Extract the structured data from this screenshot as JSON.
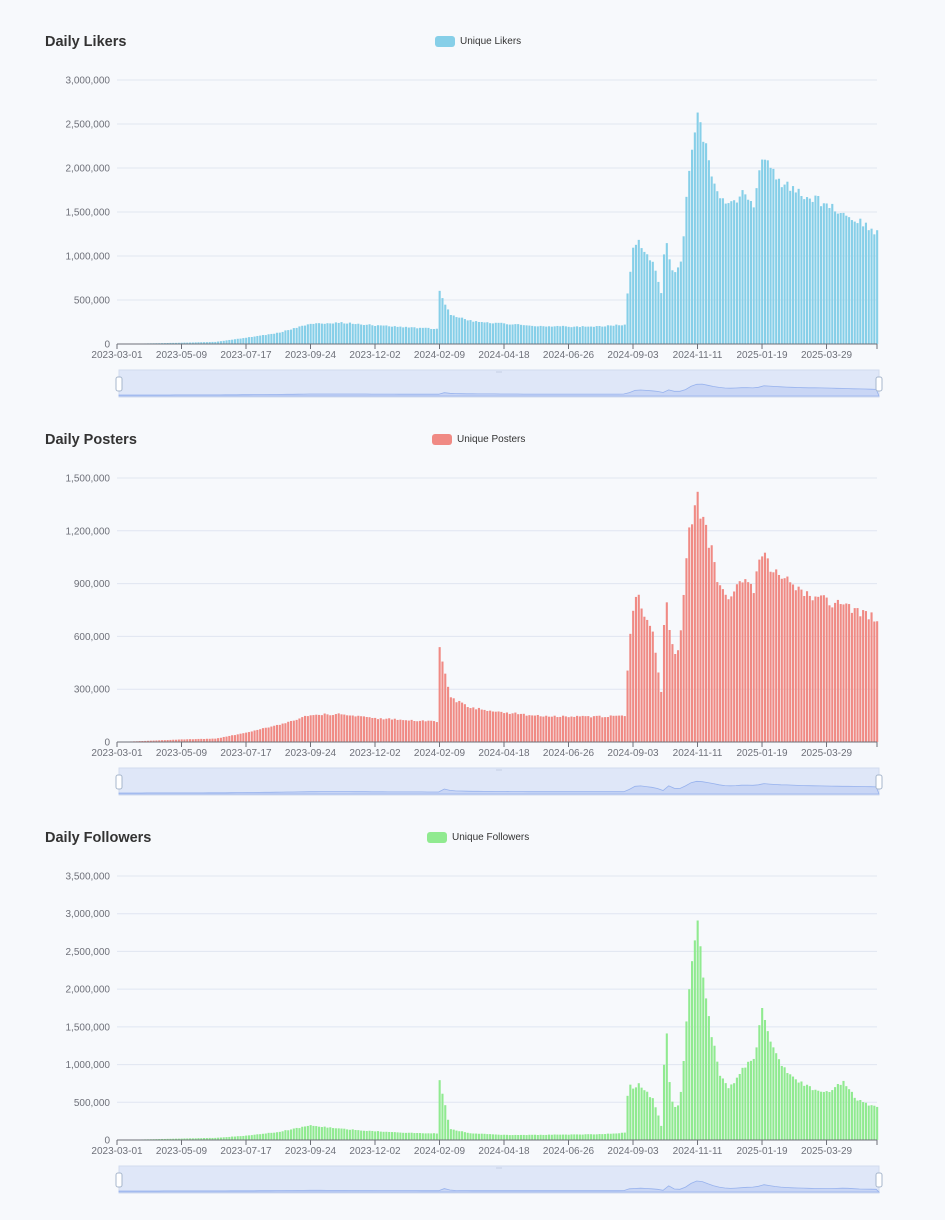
{
  "colors": {
    "background": "#f7f9fc",
    "likers": "#86cfe8",
    "posters": "#f08a84",
    "followers": "#90ea90",
    "grid": "#e0e6f1",
    "axis": "#6e7079",
    "zoom_fill": "#dfe7f8",
    "zoom_line": "#97b2ed"
  },
  "charts": [
    {
      "id": "likers",
      "title": "Daily Likers",
      "legend": "Unique Likers",
      "color_key": "likers",
      "y_ticks": [
        "0",
        "500,000",
        "1,000,000",
        "1,500,000",
        "2,000,000",
        "2,500,000",
        "3,000,000"
      ],
      "x_ticks": [
        "2023-03-01",
        "2023-05-09",
        "2023-07-17",
        "2023-09-24",
        "2023-12-02",
        "2024-02-09",
        "2024-04-18",
        "2024-06-26",
        "2024-09-03",
        "2024-11-11",
        "2025-01-19",
        "2025-03-29"
      ]
    },
    {
      "id": "posters",
      "title": "Daily Posters",
      "legend": "Unique Posters",
      "color_key": "posters",
      "y_ticks": [
        "0",
        "300,000",
        "600,000",
        "900,000",
        "1,200,000",
        "1,500,000"
      ],
      "x_ticks": [
        "2023-03-01",
        "2023-05-09",
        "2023-07-17",
        "2023-09-24",
        "2023-12-02",
        "2024-02-09",
        "2024-04-18",
        "2024-06-26",
        "2024-09-03",
        "2024-11-11",
        "2025-01-19",
        "2025-03-29"
      ]
    },
    {
      "id": "followers",
      "title": "Daily Followers",
      "legend": "Unique Followers",
      "color_key": "followers",
      "y_ticks": [
        "0",
        "500,000",
        "1,000,000",
        "1,500,000",
        "2,000,000",
        "2,500,000",
        "3,000,000",
        "3,500,000"
      ],
      "x_ticks": [
        "2023-03-01",
        "2023-05-09",
        "2023-07-17",
        "2023-09-24",
        "2023-12-02",
        "2024-02-09",
        "2024-04-18",
        "2024-06-26",
        "2024-09-03",
        "2024-11-11",
        "2025-01-19",
        "2025-03-29"
      ]
    }
  ],
  "chart_data": [
    {
      "type": "bar",
      "title": "Daily Likers",
      "series": [
        {
          "name": "Unique Likers",
          "x": [
            "2023-03-01",
            "2023-05-09",
            "2023-06-15",
            "2023-07-17",
            "2023-08-20",
            "2023-09-24",
            "2023-10-30",
            "2023-12-02",
            "2024-01-05",
            "2024-02-08",
            "2024-02-09",
            "2024-02-20",
            "2024-03-15",
            "2024-04-18",
            "2024-05-20",
            "2024-06-26",
            "2024-08-01",
            "2024-08-25",
            "2024-08-29",
            "2024-09-03",
            "2024-09-08",
            "2024-09-25",
            "2024-10-03",
            "2024-10-08",
            "2024-10-13",
            "2024-10-20",
            "2024-10-25",
            "2024-11-01",
            "2024-11-11",
            "2024-11-14",
            "2024-11-25",
            "2024-12-05",
            "2024-12-15",
            "2024-12-30",
            "2025-01-10",
            "2025-01-19",
            "2025-02-01",
            "2025-02-15",
            "2025-03-01",
            "2025-03-15",
            "2025-03-29",
            "2025-04-15",
            "2025-05-01",
            "2025-05-15",
            "2025-05-22"
          ],
          "values": [
            0,
            15000,
            25000,
            75000,
            130000,
            240000,
            250000,
            220000,
            195000,
            180000,
            630000,
            350000,
            270000,
            240000,
            215000,
            205000,
            210000,
            230000,
            700000,
            1100000,
            1200000,
            950000,
            600000,
            1300000,
            900000,
            850000,
            1000000,
            2000000,
            2780000,
            2600000,
            2050000,
            1700000,
            1600000,
            1800000,
            1650000,
            2200000,
            2000000,
            1850000,
            1750000,
            1700000,
            1650000,
            1550000,
            1450000,
            1380000,
            1300000
          ]
        }
      ],
      "ylim": [
        0,
        3000000
      ]
    },
    {
      "type": "bar",
      "title": "Daily Posters",
      "series": [
        {
          "name": "Unique Posters",
          "x": [
            "2023-03-01",
            "2023-05-09",
            "2023-06-15",
            "2023-07-17",
            "2023-08-20",
            "2023-09-24",
            "2023-10-30",
            "2023-12-02",
            "2024-01-05",
            "2024-02-08",
            "2024-02-09",
            "2024-02-20",
            "2024-03-15",
            "2024-04-18",
            "2024-05-20",
            "2024-06-26",
            "2024-08-01",
            "2024-08-25",
            "2024-08-29",
            "2024-09-03",
            "2024-09-08",
            "2024-09-25",
            "2024-10-03",
            "2024-10-08",
            "2024-10-13",
            "2024-10-20",
            "2024-10-25",
            "2024-11-01",
            "2024-11-11",
            "2024-11-14",
            "2024-11-25",
            "2024-12-05",
            "2024-12-15",
            "2024-12-30",
            "2025-01-10",
            "2025-01-19",
            "2025-02-01",
            "2025-02-15",
            "2025-03-01",
            "2025-03-15",
            "2025-03-29",
            "2025-04-15",
            "2025-05-01",
            "2025-05-15",
            "2025-05-22"
          ],
          "values": [
            0,
            15000,
            20000,
            55000,
            100000,
            160000,
            165000,
            140000,
            130000,
            120000,
            560000,
            260000,
            200000,
            175000,
            155000,
            150000,
            150000,
            155000,
            520000,
            800000,
            860000,
            620000,
            300000,
            920000,
            580000,
            500000,
            700000,
            1200000,
            1470000,
            1350000,
            1150000,
            900000,
            850000,
            950000,
            900000,
            1120000,
            1000000,
            950000,
            880000,
            860000,
            830000,
            800000,
            770000,
            740000,
            720000
          ]
        }
      ],
      "ylim": [
        0,
        1500000
      ]
    },
    {
      "type": "bar",
      "title": "Daily Followers",
      "series": [
        {
          "name": "Unique Followers",
          "x": [
            "2023-03-01",
            "2023-05-09",
            "2023-06-15",
            "2023-07-17",
            "2023-08-20",
            "2023-09-24",
            "2023-10-30",
            "2023-12-02",
            "2024-01-05",
            "2024-02-08",
            "2024-02-09",
            "2024-02-20",
            "2024-03-15",
            "2024-04-18",
            "2024-05-20",
            "2024-06-26",
            "2024-08-01",
            "2024-08-25",
            "2024-08-29",
            "2024-09-03",
            "2024-09-08",
            "2024-09-25",
            "2024-10-03",
            "2024-10-08",
            "2024-10-13",
            "2024-10-20",
            "2024-10-25",
            "2024-11-01",
            "2024-11-11",
            "2024-11-14",
            "2024-11-25",
            "2024-12-05",
            "2024-12-15",
            "2024-12-30",
            "2025-01-10",
            "2025-01-19",
            "2025-02-01",
            "2025-02-15",
            "2025-03-01",
            "2025-03-15",
            "2025-03-29",
            "2025-04-15",
            "2025-05-01",
            "2025-05-15",
            "2025-05-22"
          ],
          "values": [
            0,
            20000,
            30000,
            60000,
            110000,
            200000,
            150000,
            120000,
            100000,
            90000,
            850000,
            150000,
            90000,
            70000,
            70000,
            75000,
            80000,
            100000,
            800000,
            700000,
            780000,
            550000,
            200000,
            1650000,
            600000,
            400000,
            700000,
            2000000,
            3100000,
            2600000,
            1500000,
            900000,
            700000,
            1000000,
            1100000,
            1750000,
            1200000,
            900000,
            800000,
            700000,
            650000,
            800000,
            550000,
            480000,
            450000
          ]
        }
      ],
      "ylim": [
        0,
        3500000
      ]
    }
  ]
}
